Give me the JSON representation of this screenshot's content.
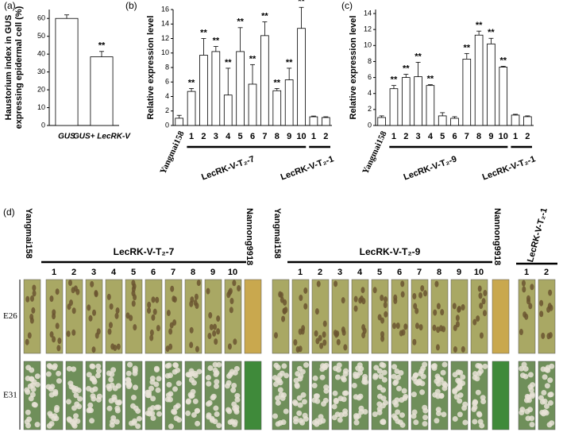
{
  "chart_data": [
    {
      "type": "bar",
      "panel_label": "(a)",
      "ylabel": [
        "Haustorium index in GUS",
        "expressing epidermal cell (%)"
      ],
      "categories": [
        "GUS",
        "GUS+ LecRK-V"
      ],
      "values": [
        60,
        38.5
      ],
      "errors": [
        2,
        3
      ],
      "significance": [
        null,
        "**"
      ],
      "ylim": [
        0,
        65
      ],
      "yticks": [
        0,
        10,
        20,
        30,
        40,
        50,
        60
      ],
      "color": "#ffffff"
    },
    {
      "type": "bar",
      "panel_label": "(b)",
      "ylabel": [
        "Relative expression level"
      ],
      "categories": [
        "Yangmai158",
        "1",
        "2",
        "3",
        "4",
        "5",
        "6",
        "7",
        "8",
        "9",
        "10",
        "1",
        "2"
      ],
      "values": [
        1.0,
        4.7,
        9.7,
        10.2,
        4.2,
        10.2,
        5.7,
        12.4,
        4.8,
        6.3,
        13.4,
        1.2,
        1.1
      ],
      "errors": [
        0.4,
        0.4,
        2.3,
        0.7,
        3.7,
        3.3,
        2.7,
        1.9,
        0.3,
        1.6,
        2.9,
        0.1,
        0.1
      ],
      "significance": [
        null,
        "**",
        "**",
        "**",
        "**",
        "**",
        "**",
        "**",
        "**",
        "**",
        "**",
        null,
        null
      ],
      "groups": [
        "LecRK-V-T₂-7",
        "LecRK-V-T₂-1"
      ],
      "ylim": [
        0,
        16
      ],
      "yticks": [
        0,
        2,
        4,
        6,
        8,
        10,
        12,
        14,
        16
      ],
      "color": "#ffffff"
    },
    {
      "type": "bar",
      "panel_label": "(c)",
      "ylabel": [
        "Relative expression level"
      ],
      "categories": [
        "Yangmai158",
        "1",
        "2",
        "3",
        "4",
        "5",
        "6",
        "7",
        "8",
        "9",
        "10",
        "1",
        "2"
      ],
      "values": [
        1.0,
        4.6,
        6.0,
        6.1,
        5.0,
        1.2,
        0.9,
        8.3,
        11.3,
        10.2,
        7.3,
        1.3,
        1.1
      ],
      "errors": [
        0.2,
        0.4,
        0.4,
        1.8,
        0.1,
        0.4,
        0.2,
        0.7,
        0.5,
        0.7,
        0.1,
        0.1,
        0.1
      ],
      "significance": [
        null,
        "**",
        "**",
        "**",
        "**",
        null,
        null,
        "**",
        "**",
        "**",
        "**",
        null,
        null
      ],
      "groups": [
        "LecRK-V-T₂-9",
        "LecRK-V-T₂-1"
      ],
      "ylim": [
        0,
        14.5
      ],
      "yticks": [
        0,
        2,
        4,
        6,
        8,
        10,
        12,
        14
      ],
      "color": "#ffffff"
    }
  ],
  "photo_panel": {
    "panel_label": "(d)",
    "row_labels": [
      "E26",
      "E31"
    ],
    "left": {
      "control": "Yangmai158",
      "line": "LecRK-V-T₂-7",
      "numbers": [
        "1",
        "2",
        "3",
        "4",
        "5",
        "6",
        "7",
        "8",
        "9",
        "10"
      ],
      "resistant": "Nannong9918"
    },
    "right": {
      "control": "Yangmai158",
      "line": "LecRK-V-T₂-9",
      "numbers": [
        "1",
        "2",
        "3",
        "4",
        "5",
        "6",
        "7",
        "8",
        "9",
        "10"
      ],
      "resistant": "Nannong9918"
    },
    "extra": {
      "line": "LecRK-V-T₂-1",
      "numbers": [
        "1",
        "2"
      ]
    }
  }
}
